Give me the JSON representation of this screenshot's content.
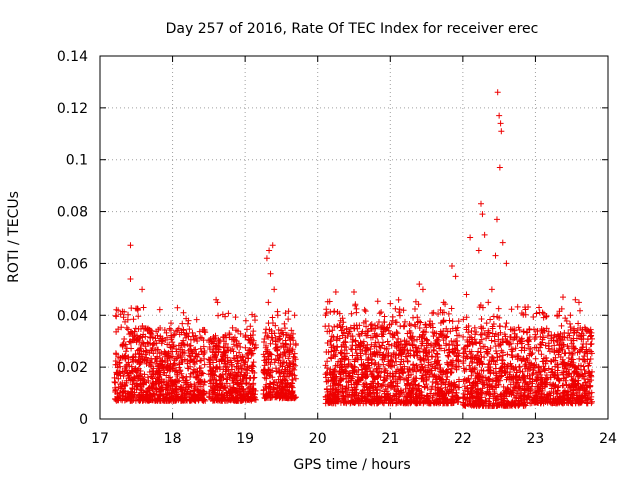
{
  "chart_data": {
    "type": "scatter",
    "title": "Day 257 of 2016, Rate Of TEC Index for receiver erec",
    "xlabel": "GPS time / hours",
    "ylabel": "ROTI / TECUs",
    "xlim": [
      17,
      24
    ],
    "ylim": [
      0,
      0.14
    ],
    "x_ticks": [
      "17",
      "18",
      "19",
      "20",
      "21",
      "22",
      "23",
      "24"
    ],
    "y_ticks": [
      "0",
      "0.02",
      "0.04",
      "0.06",
      "0.08",
      "0.1",
      "0.12",
      "0.14"
    ],
    "grid": true,
    "marker": "+",
    "color": "#ee0000",
    "data_segments": [
      {
        "x_start": 17.2,
        "x_end": 18.45,
        "y_min": 0.007,
        "y_max": 0.035
      },
      {
        "x_start": 18.5,
        "x_end": 19.15,
        "y_min": 0.007,
        "y_max": 0.033
      },
      {
        "x_start": 19.25,
        "x_end": 19.7,
        "y_min": 0.008,
        "y_max": 0.035
      },
      {
        "x_start": 20.1,
        "x_end": 21.95,
        "y_min": 0.006,
        "y_max": 0.038
      },
      {
        "x_start": 22.0,
        "x_end": 22.9,
        "y_min": 0.005,
        "y_max": 0.036
      },
      {
        "x_start": 22.9,
        "x_end": 23.78,
        "y_min": 0.006,
        "y_max": 0.035
      }
    ],
    "notable_points": [
      {
        "x": 17.42,
        "y": 0.067
      },
      {
        "x": 17.42,
        "y": 0.054
      },
      {
        "x": 17.58,
        "y": 0.05
      },
      {
        "x": 17.6,
        "y": 0.043
      },
      {
        "x": 18.15,
        "y": 0.041
      },
      {
        "x": 18.6,
        "y": 0.046
      },
      {
        "x": 18.62,
        "y": 0.045
      },
      {
        "x": 19.3,
        "y": 0.062
      },
      {
        "x": 19.33,
        "y": 0.065
      },
      {
        "x": 19.38,
        "y": 0.067
      },
      {
        "x": 19.35,
        "y": 0.056
      },
      {
        "x": 19.4,
        "y": 0.05
      },
      {
        "x": 19.32,
        "y": 0.045
      },
      {
        "x": 19.45,
        "y": 0.04
      },
      {
        "x": 20.25,
        "y": 0.049
      },
      {
        "x": 20.5,
        "y": 0.049
      },
      {
        "x": 21.4,
        "y": 0.052
      },
      {
        "x": 21.45,
        "y": 0.05
      },
      {
        "x": 21.85,
        "y": 0.059
      },
      {
        "x": 21.9,
        "y": 0.055
      },
      {
        "x": 22.1,
        "y": 0.07
      },
      {
        "x": 22.25,
        "y": 0.083
      },
      {
        "x": 22.27,
        "y": 0.079
      },
      {
        "x": 22.3,
        "y": 0.071
      },
      {
        "x": 22.22,
        "y": 0.065
      },
      {
        "x": 22.48,
        "y": 0.126
      },
      {
        "x": 22.5,
        "y": 0.117
      },
      {
        "x": 22.52,
        "y": 0.114
      },
      {
        "x": 22.53,
        "y": 0.111
      },
      {
        "x": 22.51,
        "y": 0.097
      },
      {
        "x": 22.55,
        "y": 0.068
      },
      {
        "x": 22.47,
        "y": 0.077
      },
      {
        "x": 22.45,
        "y": 0.063
      },
      {
        "x": 22.6,
        "y": 0.06
      },
      {
        "x": 22.4,
        "y": 0.05
      },
      {
        "x": 22.35,
        "y": 0.045
      },
      {
        "x": 22.05,
        "y": 0.048
      },
      {
        "x": 23.05,
        "y": 0.043
      },
      {
        "x": 23.3,
        "y": 0.04
      },
      {
        "x": 23.38,
        "y": 0.047
      },
      {
        "x": 23.55,
        "y": 0.046
      },
      {
        "x": 23.6,
        "y": 0.045
      }
    ]
  }
}
